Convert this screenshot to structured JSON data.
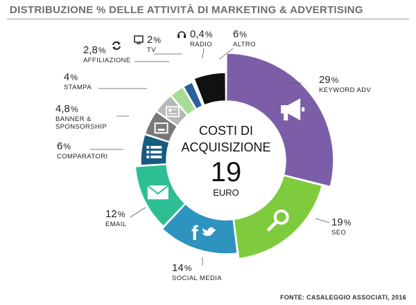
{
  "chart_data": {
    "type": "pie",
    "title": "DISTRIBUZIONE % DELLE ATTIVITÀ DI MARKETING & ADVERTISING",
    "center": {
      "line1": "COSTI DI",
      "line2": "ACQUISIZIONE",
      "value": "19",
      "unit": "EURO"
    },
    "source": "FONTE: CASALEGGIO ASSOCIATI, 2016",
    "slices": [
      {
        "label": "KEYWORD ADV",
        "value": 29,
        "display": "29",
        "color": "#7b5ea7",
        "icon": "megaphone-icon"
      },
      {
        "label": "SEO",
        "value": 19,
        "display": "19",
        "color": "#7ecb3e",
        "icon": "magnifier-icon"
      },
      {
        "label": "SOCIAL MEDIA",
        "value": 14,
        "display": "14",
        "color": "#2e93be",
        "icon": "facebook-twitter-icon"
      },
      {
        "label": "EMAIL",
        "value": 12,
        "display": "12",
        "color": "#2ebe93",
        "icon": "envelope-icon"
      },
      {
        "label": "COMPARATORI",
        "value": 6,
        "display": "6",
        "color": "#175b83",
        "icon": "list-icon"
      },
      {
        "label": "BANNER & SPONSORSHIP",
        "value": 4.8,
        "display": "4,8",
        "color": "#787878",
        "icon": "banner-icon"
      },
      {
        "label": "STAMPA",
        "value": 4,
        "display": "4",
        "color": "#b8b8b8",
        "icon": "newspaper-icon"
      },
      {
        "label": "AFFILIAZIONE",
        "value": 2.8,
        "display": "2,8",
        "color": "#a8dc96",
        "icon": "refresh-icon"
      },
      {
        "label": "TV",
        "value": 2,
        "display": "2",
        "color": "#2a5f9e",
        "icon": "tv-icon"
      },
      {
        "label": "RADIO",
        "value": 0.4,
        "display": "0,4",
        "color": "#9c7cc4",
        "icon": "headphones-icon"
      },
      {
        "label": "ALTRO",
        "value": 6,
        "display": "6",
        "color": "#111111",
        "icon": ""
      }
    ]
  }
}
